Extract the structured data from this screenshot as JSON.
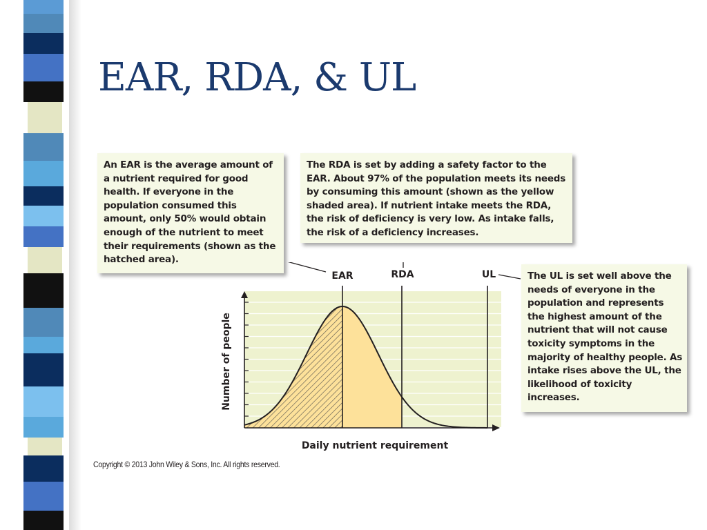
{
  "slide": {
    "title": "EAR, RDA, & UL"
  },
  "decor": {
    "stripe_blocks": [
      {
        "top": 0,
        "h": 20,
        "color": "#5b9bd5"
      },
      {
        "top": 20,
        "h": 28,
        "color": "#5089b8"
      },
      {
        "top": 48,
        "h": 30,
        "color": "#0b2d5e"
      },
      {
        "top": 78,
        "h": 40,
        "color": "#4472c4"
      },
      {
        "top": 118,
        "h": 30,
        "color": "#111111"
      },
      {
        "top": 148,
        "h": 45,
        "color": "#e4e6c4",
        "cream": true
      },
      {
        "top": 193,
        "h": 40,
        "color": "#5089b8"
      },
      {
        "top": 233,
        "h": 37,
        "color": "#5aa9dc"
      },
      {
        "top": 270,
        "h": 28,
        "color": "#0b2d5e"
      },
      {
        "top": 298,
        "h": 30,
        "color": "#7cc0ee"
      },
      {
        "top": 328,
        "h": 30,
        "color": "#4472c4"
      },
      {
        "top": 358,
        "h": 38,
        "color": "#e4e6c4",
        "cream": true
      },
      {
        "top": 396,
        "h": 50,
        "color": "#111111"
      },
      {
        "top": 446,
        "h": 42,
        "color": "#5089b8"
      },
      {
        "top": 488,
        "h": 24,
        "color": "#5aa9dc"
      },
      {
        "top": 512,
        "h": 48,
        "color": "#0b2d5e"
      },
      {
        "top": 560,
        "h": 44,
        "color": "#7cc0ee"
      },
      {
        "top": 604,
        "h": 30,
        "color": "#5aa9dc"
      },
      {
        "top": 634,
        "h": 26,
        "color": "#e4e6c4",
        "cream": true
      },
      {
        "top": 660,
        "h": 38,
        "color": "#0b2d5e"
      },
      {
        "top": 698,
        "h": 42,
        "color": "#4472c4"
      },
      {
        "top": 740,
        "h": 28,
        "color": "#111111"
      }
    ]
  },
  "callouts": {
    "ear": {
      "pre": "An ",
      "term": "EAR",
      "post": " is the average amount of a nutrient required for good health. If everyone in the population consumed this amount, only 50% would obtain enough of the nutrient to meet their requirements (shown as the hatched area)."
    },
    "rda": {
      "pre": "The ",
      "term": "RDA",
      "post": " is set by adding a safety factor to the EAR. About 97% of the population meets its needs by consuming this amount (shown as the yellow shaded area). If nutrient intake meets the RDA, the risk of deficiency is very low. As intake falls, the risk of a deficiency increases."
    },
    "ul": {
      "pre": "The ",
      "term": "UL",
      "post": " is set well above the needs of everyone in the population and represents the highest amount of the nutrient that will not cause toxicity symptoms in the majority of healthy people. As intake rises above the UL, the likelihood of toxicity increases."
    }
  },
  "diagram": {
    "labels": {
      "ear": "EAR",
      "rda": "RDA",
      "ul": "UL"
    },
    "x_axis_label": "Daily nutrient requirement",
    "y_axis_label": "Number of people",
    "colors": {
      "background": "#eef2cf",
      "gridlines": "#ffffff",
      "rda_fill": "#fde19a",
      "hatch_fill": "#fde19a",
      "hatch_lines": "#4a4a4a",
      "curve": "#231f20"
    }
  },
  "footer": {
    "copyright": "Copyright © 2013 John Wiley & Sons, Inc. All rights reserved."
  }
}
